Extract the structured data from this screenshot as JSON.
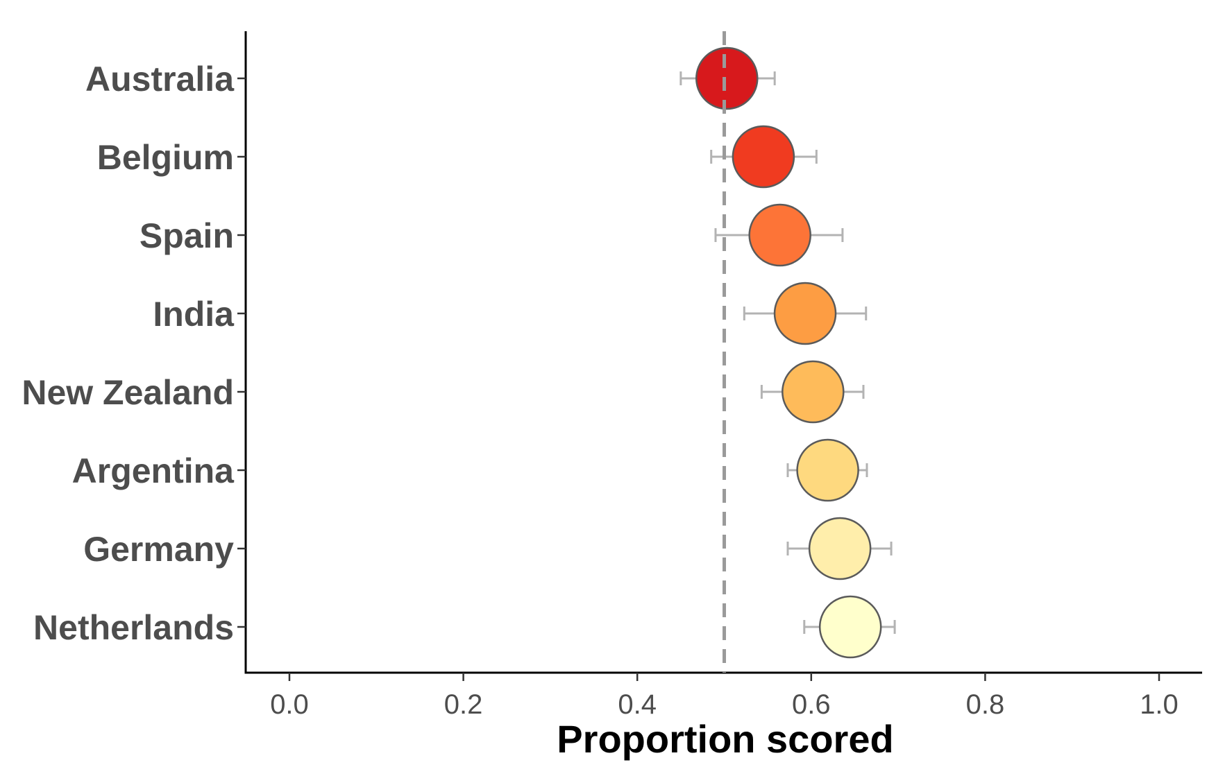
{
  "chart_data": {
    "type": "scatter",
    "xlabel": "Proportion scored",
    "xlim": [
      -0.05,
      1.05
    ],
    "x_ticks": [
      "0.0",
      "0.2",
      "0.4",
      "0.6",
      "0.8",
      "1.0"
    ],
    "x_tick_values": [
      0.0,
      0.2,
      0.4,
      0.6,
      0.8,
      1.0
    ],
    "reference_line": 0.5,
    "grid": false,
    "categories": [
      "Australia",
      "Belgium",
      "Spain",
      "India",
      "New Zealand",
      "Argentina",
      "Germany",
      "Netherlands"
    ],
    "points": [
      {
        "label": "Australia",
        "value": 0.503,
        "lower": 0.45,
        "upper": 0.558,
        "color": "#d7191c"
      },
      {
        "label": "Belgium",
        "value": 0.545,
        "lower": 0.485,
        "upper": 0.606,
        "color": "#f03b20"
      },
      {
        "label": "Spain",
        "value": 0.564,
        "lower": 0.49,
        "upper": 0.636,
        "color": "#fd7437"
      },
      {
        "label": "India",
        "value": 0.593,
        "lower": 0.523,
        "upper": 0.663,
        "color": "#fd9d43"
      },
      {
        "label": "New Zealand",
        "value": 0.602,
        "lower": 0.543,
        "upper": 0.66,
        "color": "#febb5a"
      },
      {
        "label": "Argentina",
        "value": 0.619,
        "lower": 0.573,
        "upper": 0.664,
        "color": "#fed97f"
      },
      {
        "label": "Germany",
        "value": 0.633,
        "lower": 0.573,
        "upper": 0.692,
        "color": "#ffeeab"
      },
      {
        "label": "Netherlands",
        "value": 0.645,
        "lower": 0.592,
        "upper": 0.696,
        "color": "#ffffcc"
      }
    ]
  }
}
